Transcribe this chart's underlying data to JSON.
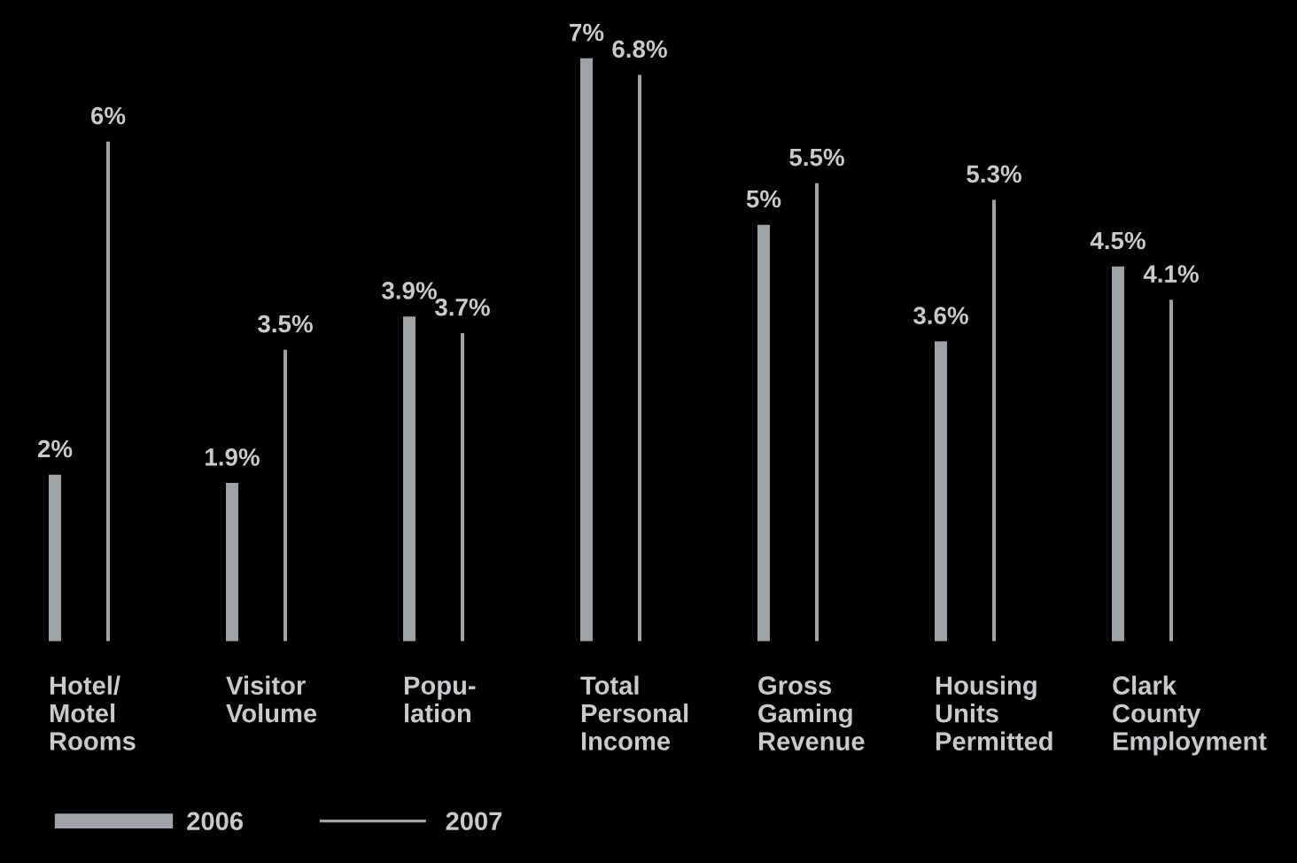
{
  "chart_data": {
    "type": "bar",
    "categories": [
      "Hotel/\nMotel\nRooms",
      "Visitor\nVolume",
      "Popu-\nlation",
      "Total\nPersonal\nIncome",
      "Gross\nGaming\nRevenue",
      "Housing\nUnits\nPermitted",
      "Clark\nCounty\nEmployment"
    ],
    "series": [
      {
        "name": "2006",
        "color": "#9ea3a8",
        "values": [
          2,
          1.9,
          3.9,
          7,
          5,
          3.6,
          4.5
        ],
        "value_labels": [
          "2%",
          "1.9%",
          "3.9%",
          "7%",
          "5%",
          "3.6%",
          "4.5%"
        ]
      },
      {
        "name": "2007",
        "color": "#9ea3a8",
        "values": [
          6,
          3.5,
          3.7,
          6.8,
          5.5,
          5.3,
          4.1
        ],
        "value_labels": [
          "6%",
          "3.5%",
          "3.7%",
          "6.8%",
          "5.5%",
          "5.3%",
          "4.1%"
        ]
      }
    ],
    "legend": "bottom left",
    "grid": false
  }
}
